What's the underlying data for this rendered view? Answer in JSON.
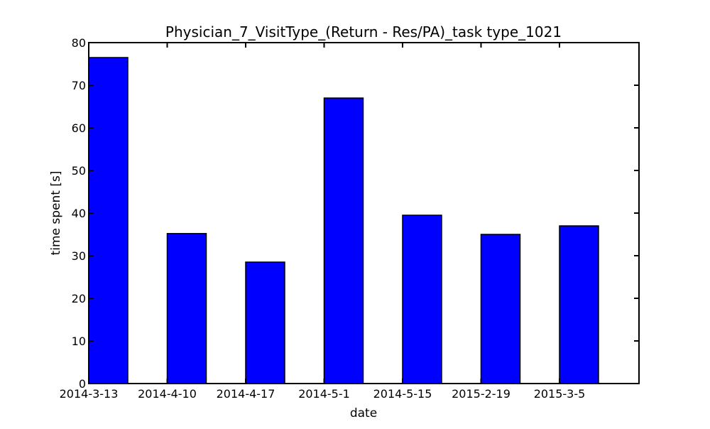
{
  "chart_data": {
    "type": "bar",
    "title": "Physician_7_VisitType_(Return - Res/PA)_task type_1021",
    "xlabel": "date",
    "ylabel": "time spent [s]",
    "categories": [
      "2014-3-13",
      "2014-4-10",
      "2014-4-17",
      "2014-5-1",
      "2014-5-15",
      "2015-2-19",
      "2015-3-5"
    ],
    "values": [
      76.5,
      35.2,
      28.5,
      67.0,
      39.5,
      35.0,
      37.0
    ],
    "ylim": [
      0,
      80
    ],
    "yticks": [
      0,
      10,
      20,
      30,
      40,
      50,
      60,
      70,
      80
    ],
    "grid": false,
    "bar_color": "#0000ff",
    "edge_color": "#000000"
  }
}
